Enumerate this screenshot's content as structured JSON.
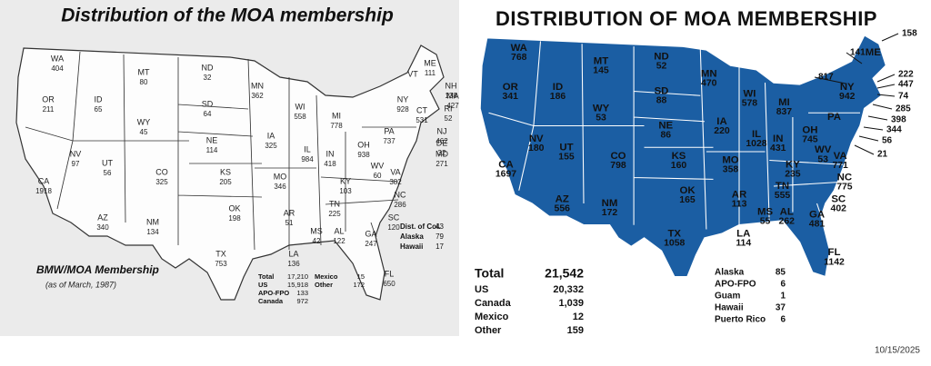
{
  "left_map": {
    "title": "Distribution of the MOA membership",
    "states": [
      {
        "label": "WA",
        "value": 404
      },
      {
        "label": "OR",
        "value": 211
      },
      {
        "label": "CA",
        "value": 1918
      },
      {
        "label": "NV",
        "value": 97
      },
      {
        "label": "ID",
        "value": 65
      },
      {
        "label": "MT",
        "value": 80
      },
      {
        "label": "WY",
        "value": 45
      },
      {
        "label": "UT",
        "value": 56
      },
      {
        "label": "AZ",
        "value": 340
      },
      {
        "label": "CO",
        "value": 325
      },
      {
        "label": "NM",
        "value": 134
      },
      {
        "label": "ND",
        "value": 32
      },
      {
        "label": "SD",
        "value": 64
      },
      {
        "label": "NE",
        "value": 114
      },
      {
        "label": "KS",
        "value": 205
      },
      {
        "label": "OK",
        "value": 198
      },
      {
        "label": "TX",
        "value": 753
      },
      {
        "label": "MN",
        "value": 362
      },
      {
        "label": "IA",
        "value": 325
      },
      {
        "label": "MO",
        "value": 346
      },
      {
        "label": "AR",
        "value": 51
      },
      {
        "label": "LA",
        "value": 136
      },
      {
        "label": "WI",
        "value": 558
      },
      {
        "label": "IL",
        "value": 984
      },
      {
        "label": "MS",
        "value": 42
      },
      {
        "label": "MI",
        "value": 778
      },
      {
        "label": "IN",
        "value": 418
      },
      {
        "label": "KY",
        "value": 103
      },
      {
        "label": "TN",
        "value": 225
      },
      {
        "label": "AL",
        "value": 122
      },
      {
        "label": "OH",
        "value": 938
      },
      {
        "label": "WV",
        "value": 60
      },
      {
        "label": "VA",
        "value": 382
      },
      {
        "label": "NC",
        "value": 286
      },
      {
        "label": "SC",
        "value": 120
      },
      {
        "label": "GA",
        "value": 247
      },
      {
        "label": "FL",
        "value": 650
      },
      {
        "label": "PA",
        "value": 737
      },
      {
        "label": "NY",
        "value": 928
      },
      {
        "label": "ME",
        "value": 111
      },
      {
        "label": "VT"
      },
      {
        "label": "NH",
        "value": 138
      },
      {
        "label": "MA",
        "value": 427
      },
      {
        "label": "RI",
        "value": 52
      },
      {
        "label": "CT",
        "value": 531
      },
      {
        "label": "NJ",
        "value": 462
      },
      {
        "label": "DE",
        "value": 32
      },
      {
        "label": "MD",
        "value": 271
      }
    ],
    "inset": {
      "title": "BMW/MOA Membership",
      "note": "(as of March, 1987)"
    },
    "other_areas": [
      {
        "label": "Dist. of Col.",
        "value": 43
      },
      {
        "label": "Alaska",
        "value": 79
      },
      {
        "label": "Hawaii",
        "value": 17
      }
    ],
    "totals": [
      {
        "label": "Total",
        "value": "17,210"
      },
      {
        "label": "US",
        "value": "15,918"
      },
      {
        "label": "APO-FPO",
        "value": 133
      },
      {
        "label": "Canada",
        "value": 972
      },
      {
        "label": "Mexico",
        "value": 15
      },
      {
        "label": "Other",
        "value": 172
      }
    ]
  },
  "right_map": {
    "title": "DISTRIBUTION OF MOA MEMBERSHIP",
    "states": [
      {
        "label": "WA",
        "value": 768
      },
      {
        "label": "OR",
        "value": 341
      },
      {
        "label": "CA",
        "value": 1697
      },
      {
        "label": "NV",
        "value": 180
      },
      {
        "label": "ID",
        "value": 186
      },
      {
        "label": "MT",
        "value": 145
      },
      {
        "label": "WY",
        "value": 53
      },
      {
        "label": "UT",
        "value": 155
      },
      {
        "label": "AZ",
        "value": 556
      },
      {
        "label": "CO",
        "value": 798
      },
      {
        "label": "NM",
        "value": 172
      },
      {
        "label": "ND",
        "value": 52
      },
      {
        "label": "SD",
        "value": 88
      },
      {
        "label": "NE",
        "value": 86
      },
      {
        "label": "KS",
        "value": 160
      },
      {
        "label": "OK",
        "value": 165
      },
      {
        "label": "TX",
        "value": 1058
      },
      {
        "label": "MN",
        "value": 470
      },
      {
        "label": "IA",
        "value": 220
      },
      {
        "label": "MO",
        "value": 358
      },
      {
        "label": "AR",
        "value": 113
      },
      {
        "label": "LA",
        "value": 114
      },
      {
        "label": "WI",
        "value": 578
      },
      {
        "label": "IL",
        "value": 1028
      },
      {
        "label": "MS",
        "value": 55
      },
      {
        "label": "MI",
        "value": 837
      },
      {
        "label": "IN",
        "value": 431
      },
      {
        "label": "KY",
        "value": 235
      },
      {
        "label": "TN",
        "value": 555
      },
      {
        "label": "AL",
        "value": 262
      },
      {
        "label": "OH",
        "value": 745
      },
      {
        "label": "WV",
        "value": 53
      },
      {
        "label": "VA",
        "value": 771
      },
      {
        "label": "NC",
        "value": 775
      },
      {
        "label": "SC",
        "value": 402
      },
      {
        "label": "GA",
        "value": 481
      },
      {
        "label": "FL",
        "value": 1142
      },
      {
        "label": "PA"
      },
      {
        "label": "NY",
        "value": 942
      },
      {
        "label": "ME"
      }
    ],
    "callouts": [
      158,
      141,
      817,
      222,
      447,
      74,
      285,
      398,
      344,
      56,
      21
    ],
    "totals": [
      {
        "label": "Total",
        "value": "21,542"
      },
      {
        "label": "US",
        "value": "20,332"
      },
      {
        "label": "Canada",
        "value": "1,039"
      },
      {
        "label": "Mexico",
        "value": 12
      },
      {
        "label": "Other",
        "value": 159
      }
    ],
    "territories": [
      {
        "label": "Alaska",
        "value": 85
      },
      {
        "label": "APO-FPO",
        "value": 6
      },
      {
        "label": "Guam",
        "value": 1
      },
      {
        "label": "Hawaii",
        "value": 37
      },
      {
        "label": "Puerto Rico",
        "value": 6
      }
    ]
  },
  "date": "10/15/2025"
}
